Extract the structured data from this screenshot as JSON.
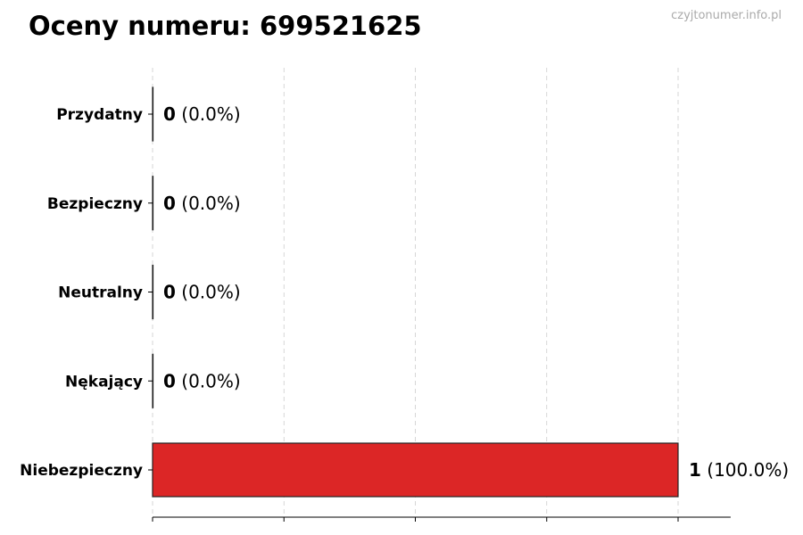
{
  "chart_data": {
    "type": "bar",
    "orientation": "horizontal",
    "title": "Oceny numeru: 699521625",
    "watermark": "czyjtonumer.info.pl",
    "categories": [
      "Przydatny",
      "Bezpieczny",
      "Neutralny",
      "Nękający",
      "Niebezpieczny"
    ],
    "values": [
      0,
      0,
      0,
      0,
      1
    ],
    "labels": [
      "(0.0%)",
      "(0.0%)",
      "(0.0%)",
      "(0.0%)",
      "(100.0%)"
    ],
    "colors": [
      "#2ca02c",
      "#2ca02c",
      "#999999",
      "#d62728",
      "#dc2626"
    ],
    "xlim": [
      0,
      1.1
    ],
    "xticks": [
      0,
      0.25,
      0.5,
      0.75,
      1
    ],
    "xtick_labels_shown": false,
    "grid": "vertical dashed",
    "xlabel": "",
    "ylabel": ""
  }
}
